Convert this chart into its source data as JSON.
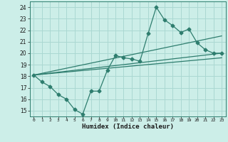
{
  "xlabel": "Humidex (Indice chaleur)",
  "ylabel": "",
  "bg_color": "#cceee8",
  "grid_color": "#aad8d2",
  "line_color": "#2e7d6e",
  "xlim": [
    -0.5,
    23.5
  ],
  "ylim": [
    14.5,
    24.5
  ],
  "xticks": [
    0,
    1,
    2,
    3,
    4,
    5,
    6,
    7,
    8,
    9,
    10,
    11,
    12,
    13,
    14,
    15,
    16,
    17,
    18,
    19,
    20,
    21,
    22,
    23
  ],
  "yticks": [
    15,
    16,
    17,
    18,
    19,
    20,
    21,
    22,
    23,
    24
  ],
  "line1_x": [
    0,
    1,
    2,
    3,
    4,
    5,
    6,
    7,
    8,
    9,
    10,
    11,
    12,
    13,
    14,
    15,
    16,
    17,
    18,
    19,
    20,
    21,
    22,
    23
  ],
  "line1_y": [
    18.1,
    17.5,
    17.1,
    16.4,
    16.0,
    15.1,
    14.7,
    16.7,
    16.7,
    18.5,
    19.8,
    19.6,
    19.5,
    19.3,
    21.7,
    24.0,
    22.9,
    22.4,
    21.8,
    22.1,
    20.9,
    20.3,
    20.0,
    20.0
  ],
  "line2_x": [
    0,
    23
  ],
  "line2_y": [
    18.1,
    20.0
  ],
  "line3_x": [
    0,
    23
  ],
  "line3_y": [
    18.1,
    19.6
  ],
  "line4_x": [
    0,
    23
  ],
  "line4_y": [
    18.1,
    21.5
  ]
}
